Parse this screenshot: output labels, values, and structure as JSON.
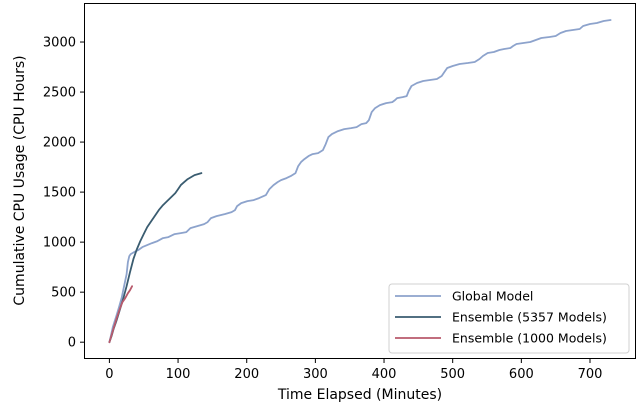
{
  "chart_data": {
    "type": "line",
    "title": "",
    "xlabel": "Time Elapsed (Minutes)",
    "ylabel": "Cumulative CPU Usage (CPU Hours)",
    "xlim": [
      -37,
      767
    ],
    "ylim": [
      -158,
      3390
    ],
    "xticks": [
      0,
      100,
      200,
      300,
      400,
      500,
      600,
      700
    ],
    "yticks": [
      0,
      500,
      1000,
      1500,
      2000,
      2500,
      3000
    ],
    "grid": false,
    "legend_position": "lower-right",
    "series": [
      {
        "name": "Global Model",
        "color": "#8da3cc",
        "points": [
          [
            0,
            0
          ],
          [
            2,
            60
          ],
          [
            5,
            150
          ],
          [
            10,
            260
          ],
          [
            14,
            350
          ],
          [
            18,
            450
          ],
          [
            22,
            580
          ],
          [
            25,
            680
          ],
          [
            27,
            800
          ],
          [
            29,
            860
          ],
          [
            31,
            880
          ],
          [
            36,
            900
          ],
          [
            42,
            920
          ],
          [
            48,
            950
          ],
          [
            55,
            970
          ],
          [
            62,
            990
          ],
          [
            70,
            1010
          ],
          [
            78,
            1040
          ],
          [
            86,
            1050
          ],
          [
            95,
            1080
          ],
          [
            104,
            1090
          ],
          [
            112,
            1100
          ],
          [
            118,
            1140
          ],
          [
            128,
            1160
          ],
          [
            138,
            1180
          ],
          [
            143,
            1200
          ],
          [
            148,
            1240
          ],
          [
            156,
            1260
          ],
          [
            168,
            1280
          ],
          [
            178,
            1300
          ],
          [
            183,
            1320
          ],
          [
            186,
            1360
          ],
          [
            192,
            1390
          ],
          [
            201,
            1410
          ],
          [
            210,
            1420
          ],
          [
            218,
            1440
          ],
          [
            228,
            1470
          ],
          [
            233,
            1530
          ],
          [
            239,
            1570
          ],
          [
            245,
            1600
          ],
          [
            250,
            1620
          ],
          [
            258,
            1640
          ],
          [
            264,
            1660
          ],
          [
            271,
            1690
          ],
          [
            275,
            1760
          ],
          [
            279,
            1800
          ],
          [
            284,
            1830
          ],
          [
            290,
            1860
          ],
          [
            296,
            1880
          ],
          [
            304,
            1890
          ],
          [
            311,
            1920
          ],
          [
            315,
            1980
          ],
          [
            319,
            2050
          ],
          [
            324,
            2080
          ],
          [
            333,
            2110
          ],
          [
            342,
            2130
          ],
          [
            352,
            2140
          ],
          [
            360,
            2150
          ],
          [
            367,
            2180
          ],
          [
            374,
            2190
          ],
          [
            378,
            2220
          ],
          [
            382,
            2300
          ],
          [
            387,
            2340
          ],
          [
            394,
            2370
          ],
          [
            403,
            2390
          ],
          [
            412,
            2400
          ],
          [
            416,
            2420
          ],
          [
            419,
            2440
          ],
          [
            427,
            2450
          ],
          [
            433,
            2460
          ],
          [
            436,
            2510
          ],
          [
            440,
            2560
          ],
          [
            448,
            2590
          ],
          [
            457,
            2610
          ],
          [
            467,
            2620
          ],
          [
            477,
            2630
          ],
          [
            484,
            2660
          ],
          [
            488,
            2700
          ],
          [
            492,
            2740
          ],
          [
            500,
            2760
          ],
          [
            510,
            2780
          ],
          [
            522,
            2790
          ],
          [
            532,
            2800
          ],
          [
            539,
            2830
          ],
          [
            544,
            2860
          ],
          [
            551,
            2890
          ],
          [
            560,
            2900
          ],
          [
            568,
            2920
          ],
          [
            575,
            2930
          ],
          [
            584,
            2940
          ],
          [
            588,
            2960
          ],
          [
            593,
            2980
          ],
          [
            603,
            2990
          ],
          [
            613,
            3000
          ],
          [
            621,
            3020
          ],
          [
            629,
            3040
          ],
          [
            641,
            3050
          ],
          [
            650,
            3060
          ],
          [
            657,
            3090
          ],
          [
            665,
            3110
          ],
          [
            675,
            3120
          ],
          [
            685,
            3130
          ],
          [
            690,
            3160
          ],
          [
            700,
            3180
          ],
          [
            710,
            3190
          ],
          [
            720,
            3210
          ],
          [
            730,
            3220
          ]
        ]
      },
      {
        "name": "Ensemble (5357 Models)",
        "color": "#3a5c70",
        "points": [
          [
            0,
            0
          ],
          [
            3,
            60
          ],
          [
            6,
            130
          ],
          [
            10,
            210
          ],
          [
            15,
            320
          ],
          [
            20,
            430
          ],
          [
            25,
            560
          ],
          [
            30,
            700
          ],
          [
            35,
            830
          ],
          [
            40,
            930
          ],
          [
            45,
            1010
          ],
          [
            50,
            1080
          ],
          [
            55,
            1150
          ],
          [
            60,
            1200
          ],
          [
            66,
            1260
          ],
          [
            72,
            1320
          ],
          [
            78,
            1370
          ],
          [
            84,
            1410
          ],
          [
            90,
            1450
          ],
          [
            96,
            1490
          ],
          [
            100,
            1530
          ],
          [
            104,
            1570
          ],
          [
            109,
            1600
          ],
          [
            114,
            1630
          ],
          [
            119,
            1650
          ],
          [
            124,
            1670
          ],
          [
            129,
            1680
          ],
          [
            134,
            1690
          ]
        ]
      },
      {
        "name": "Ensemble (1000 Models)",
        "color": "#b85a6c",
        "points": [
          [
            0,
            0
          ],
          [
            3,
            70
          ],
          [
            7,
            160
          ],
          [
            11,
            250
          ],
          [
            15,
            330
          ],
          [
            19,
            400
          ],
          [
            23,
            440
          ],
          [
            27,
            490
          ],
          [
            30,
            520
          ],
          [
            33,
            560
          ]
        ]
      }
    ]
  }
}
